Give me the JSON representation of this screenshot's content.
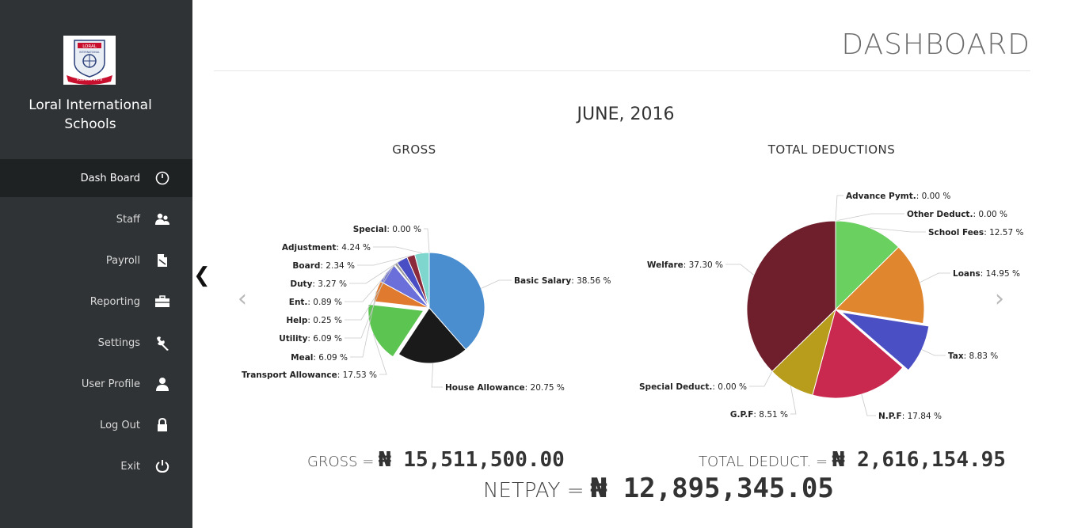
{
  "sidebar": {
    "school_name_line1": "Loral International",
    "school_name_line2": "Schools",
    "logo_text_top": "LORAL",
    "logo_text_mid": "INTERNATIONAL",
    "logo_text_ribbon": "Founded 1978",
    "items": [
      {
        "label": "Dash Board",
        "icon": "clock-icon",
        "active": true
      },
      {
        "label": "Staff",
        "icon": "users-icon",
        "active": false
      },
      {
        "label": "Payroll",
        "icon": "document-icon",
        "active": false
      },
      {
        "label": "Reporting",
        "icon": "briefcase-icon",
        "active": false
      },
      {
        "label": "Settings",
        "icon": "wrench-icon",
        "active": false
      },
      {
        "label": "User Profile",
        "icon": "user-icon",
        "active": false
      },
      {
        "label": "Log Out",
        "icon": "lock-icon",
        "active": false
      },
      {
        "label": "Exit",
        "icon": "power-icon",
        "active": false
      }
    ],
    "collapse_glyph": "❮"
  },
  "header": {
    "title": "DASHBOARD"
  },
  "period": "JUNE, 2016",
  "carousel": {
    "prev": "‹",
    "next": "›"
  },
  "chart_data": [
    {
      "type": "pie",
      "title": "GROSS",
      "slices": [
        {
          "label": "Basic Salary",
          "value": 38.56,
          "display": "38.56 %",
          "color": "#4a8ed0"
        },
        {
          "label": "House Allowance",
          "value": 20.75,
          "display": "20.75 %",
          "color": "#1a1a1a"
        },
        {
          "label": "Transport Allowance",
          "value": 17.53,
          "display": "17.53 %",
          "color": "#5cc451",
          "exploded": true
        },
        {
          "label": "Meal",
          "value": 6.09,
          "display": "6.09 %",
          "color": "#e07a2e"
        },
        {
          "label": "Utility",
          "value": 6.09,
          "display": "6.09 %",
          "color": "#6b6fd9"
        },
        {
          "label": "Help",
          "value": 0.25,
          "display": "0.25 %",
          "color": "#c8b84a"
        },
        {
          "label": "Ent.",
          "value": 0.89,
          "display": "0.89 %",
          "color": "#9a9a9a"
        },
        {
          "label": "Duty",
          "value": 3.27,
          "display": "3.27 %",
          "color": "#4a4ec4"
        },
        {
          "label": "Board",
          "value": 2.34,
          "display": "2.34 %",
          "color": "#8a2a3a"
        },
        {
          "label": "Adjustment",
          "value": 4.24,
          "display": "4.24 %",
          "color": "#7fd6cf"
        },
        {
          "label": "Special",
          "value": 0.0,
          "display": "0.00 %",
          "color": "#cccccc"
        }
      ]
    },
    {
      "type": "pie",
      "title": "TOTAL DEDUCTIONS",
      "slices": [
        {
          "label": "Advance Pymt.",
          "value": 0.0,
          "display": "0.00 %",
          "color": "#aaaaaa"
        },
        {
          "label": "Other Deduct.",
          "value": 0.0,
          "display": "0.00 %",
          "color": "#aaaaaa"
        },
        {
          "label": "School Fees",
          "value": 12.57,
          "display": "12.57 %",
          "color": "#6ad060"
        },
        {
          "label": "Loans",
          "value": 14.95,
          "display": "14.95 %",
          "color": "#e0862e"
        },
        {
          "label": "Tax",
          "value": 8.83,
          "display": "8.83 %",
          "color": "#4b4fc4",
          "exploded": true
        },
        {
          "label": "N.P.F",
          "value": 17.84,
          "display": "17.84 %",
          "color": "#c9284f"
        },
        {
          "label": "G.P.F",
          "value": 8.51,
          "display": "8.51 %",
          "color": "#b89c1c"
        },
        {
          "label": "Special Deduct.",
          "value": 0.0,
          "display": "0.00 %",
          "color": "#aaaaaa"
        },
        {
          "label": "Welfare",
          "value": 37.3,
          "display": "37.30 %",
          "color": "#6e1f2b"
        }
      ]
    }
  ],
  "totals": {
    "gross_label": "GROSS =",
    "gross_amount": "₦ 15,511,500.00",
    "deduct_label": "TOTAL DEDUCT. =",
    "deduct_amount": "₦ 2,616,154.95",
    "net_label": "NETPAY =",
    "net_amount": "₦ 12,895,345.05"
  }
}
